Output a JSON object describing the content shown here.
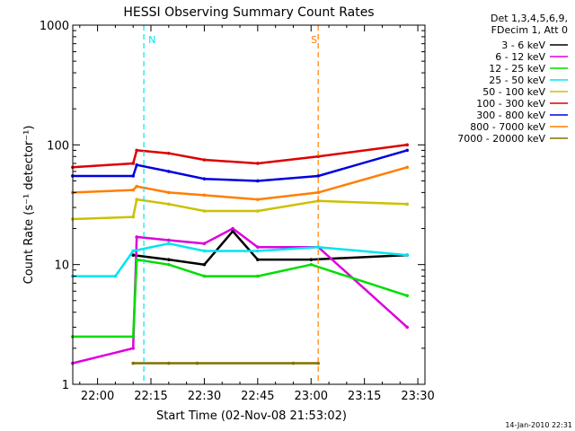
{
  "chart_data": {
    "type": "line",
    "title": "HESSI Observing Summary Count Rates",
    "xlabel": "Start Time (02-Nov-08 21:53:02)",
    "ylabel": "Count Rate (s⁻¹ detector⁻¹)",
    "y_scale": "log",
    "ylim": [
      1,
      1000
    ],
    "xlim": [
      "21:53:02",
      "23:32:00"
    ],
    "x_ticks": [
      "22:00",
      "22:15",
      "22:30",
      "22:45",
      "23:00",
      "23:15",
      "23:30"
    ],
    "y_ticks": [
      "1",
      "10",
      "100",
      "1000"
    ],
    "legend_title_lines": [
      "Det 1,3,4,5,6,9,",
      "FDecim 1, Att 0"
    ],
    "legend_placement": "right",
    "series": [
      {
        "name": "3 - 6 keV",
        "color": "#000000",
        "points": [
          [
            "22:10",
            12
          ],
          [
            "22:20",
            11
          ],
          [
            "22:30",
            10
          ],
          [
            "22:38",
            19
          ],
          [
            "22:45",
            11
          ],
          [
            "23:00",
            11
          ],
          [
            "23:27",
            12
          ]
        ]
      },
      {
        "name": "6 - 12 keV",
        "color": "#dd00dd",
        "points": [
          [
            "21:53",
            1.5
          ],
          [
            "22:10",
            2
          ],
          [
            "22:11",
            17
          ],
          [
            "22:20",
            16
          ],
          [
            "22:30",
            15
          ],
          [
            "22:38",
            20
          ],
          [
            "22:45",
            14
          ],
          [
            "23:02",
            14
          ],
          [
            "23:27",
            3
          ]
        ]
      },
      {
        "name": "12 - 25 keV",
        "color": "#00dd00",
        "points": [
          [
            "21:53",
            2.5
          ],
          [
            "22:10",
            2.5
          ],
          [
            "22:11",
            11
          ],
          [
            "22:20",
            10
          ],
          [
            "22:30",
            8
          ],
          [
            "22:45",
            8
          ],
          [
            "23:00",
            10
          ],
          [
            "23:27",
            5.5
          ]
        ]
      },
      {
        "name": "25 - 50 keV",
        "color": "#00e5ee",
        "points": [
          [
            "21:53",
            8
          ],
          [
            "22:05",
            8
          ],
          [
            "22:10",
            13
          ],
          [
            "22:20",
            15
          ],
          [
            "22:30",
            13
          ],
          [
            "22:45",
            13
          ],
          [
            "23:02",
            14
          ],
          [
            "23:27",
            12
          ]
        ]
      },
      {
        "name": "50 - 100 keV",
        "color": "#ccc000",
        "points": [
          [
            "21:53",
            24
          ],
          [
            "22:10",
            25
          ],
          [
            "22:11",
            35
          ],
          [
            "22:20",
            32
          ],
          [
            "22:30",
            28
          ],
          [
            "22:45",
            28
          ],
          [
            "23:02",
            34
          ],
          [
            "23:27",
            32
          ]
        ]
      },
      {
        "name": "100 - 300 keV",
        "color": "#dd0000",
        "points": [
          [
            "21:53",
            65
          ],
          [
            "22:10",
            70
          ],
          [
            "22:11",
            90
          ],
          [
            "22:20",
            85
          ],
          [
            "22:30",
            75
          ],
          [
            "22:45",
            70
          ],
          [
            "23:02",
            80
          ],
          [
            "23:27",
            100
          ]
        ]
      },
      {
        "name": "300 - 800 keV",
        "color": "#0000dd",
        "points": [
          [
            "21:53",
            55
          ],
          [
            "22:10",
            55
          ],
          [
            "22:11",
            68
          ],
          [
            "22:20",
            60
          ],
          [
            "22:30",
            52
          ],
          [
            "22:45",
            50
          ],
          [
            "23:02",
            55
          ],
          [
            "23:27",
            90
          ]
        ]
      },
      {
        "name": "800 - 7000 keV",
        "color": "#ff7f00",
        "points": [
          [
            "21:53",
            40
          ],
          [
            "22:10",
            42
          ],
          [
            "22:11",
            45
          ],
          [
            "22:20",
            40
          ],
          [
            "22:30",
            38
          ],
          [
            "22:45",
            35
          ],
          [
            "23:02",
            40
          ],
          [
            "23:27",
            65
          ]
        ]
      },
      {
        "name": "7000 - 20000 keV",
        "color": "#807000",
        "points": [
          [
            "22:10",
            1.5
          ],
          [
            "22:20",
            1.5
          ],
          [
            "22:28",
            1.5
          ],
          [
            "22:55",
            1.5
          ],
          [
            "23:02",
            1.5
          ]
        ]
      }
    ],
    "annotations": [
      {
        "text": "N",
        "color": "#00e5ee",
        "time": "22:13"
      },
      {
        "text": "S",
        "color": "#ff7f00",
        "time": "23:02"
      }
    ]
  },
  "footer": {
    "timestamp": "14-Jan-2010 22:31"
  }
}
